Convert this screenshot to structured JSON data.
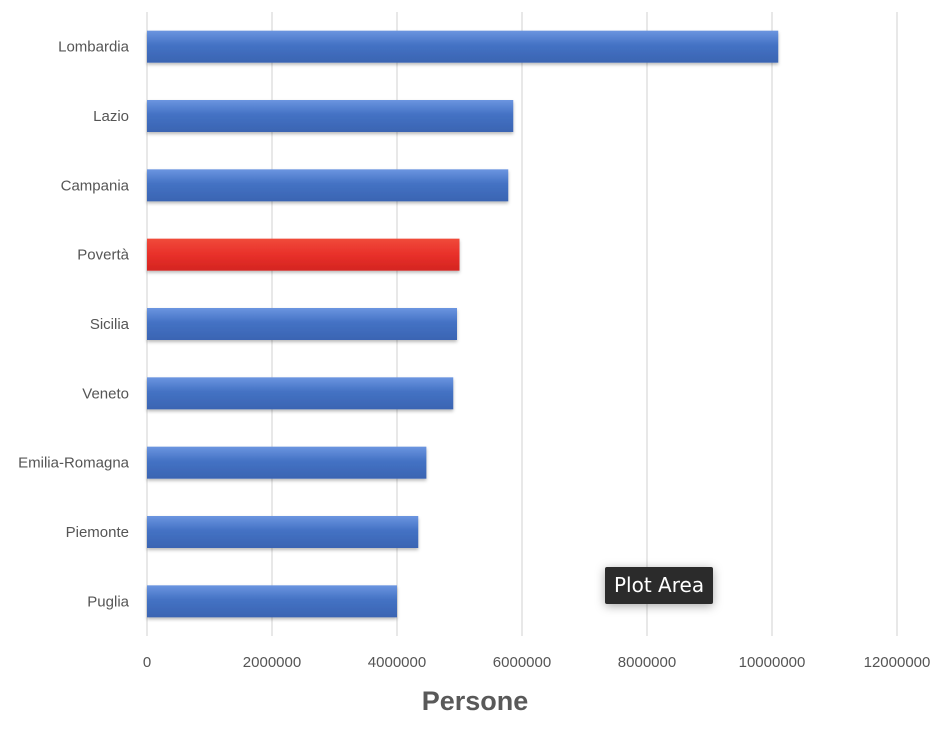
{
  "chart_data": {
    "type": "bar",
    "orientation": "horizontal",
    "categories": [
      "Lombardia",
      "Lazio",
      "Campania",
      "Povertà",
      "Sicilia",
      "Veneto",
      "Emilia-Romagna",
      "Piemonte",
      "Puglia"
    ],
    "values": [
      10100000,
      5860000,
      5780000,
      5000000,
      4960000,
      4900000,
      4470000,
      4340000,
      4000000
    ],
    "highlight_category": "Povertà",
    "colors": {
      "bar": "#4472c4",
      "bar_light": "#5b86d6",
      "highlight": "#e8302a",
      "highlight_light": "#f04a3a"
    },
    "xlabel": "Persone",
    "ylabel": "",
    "xlim": [
      0,
      12000000
    ],
    "xticks": [
      0,
      2000000,
      4000000,
      6000000,
      8000000,
      10000000,
      12000000
    ],
    "xtick_labels": [
      "0",
      "2000000",
      "4000000",
      "6000000",
      "8000000",
      "10000000",
      "12000000"
    ],
    "grid": "vertical",
    "legend": "none"
  },
  "tooltip": {
    "text": "Plot Area"
  }
}
